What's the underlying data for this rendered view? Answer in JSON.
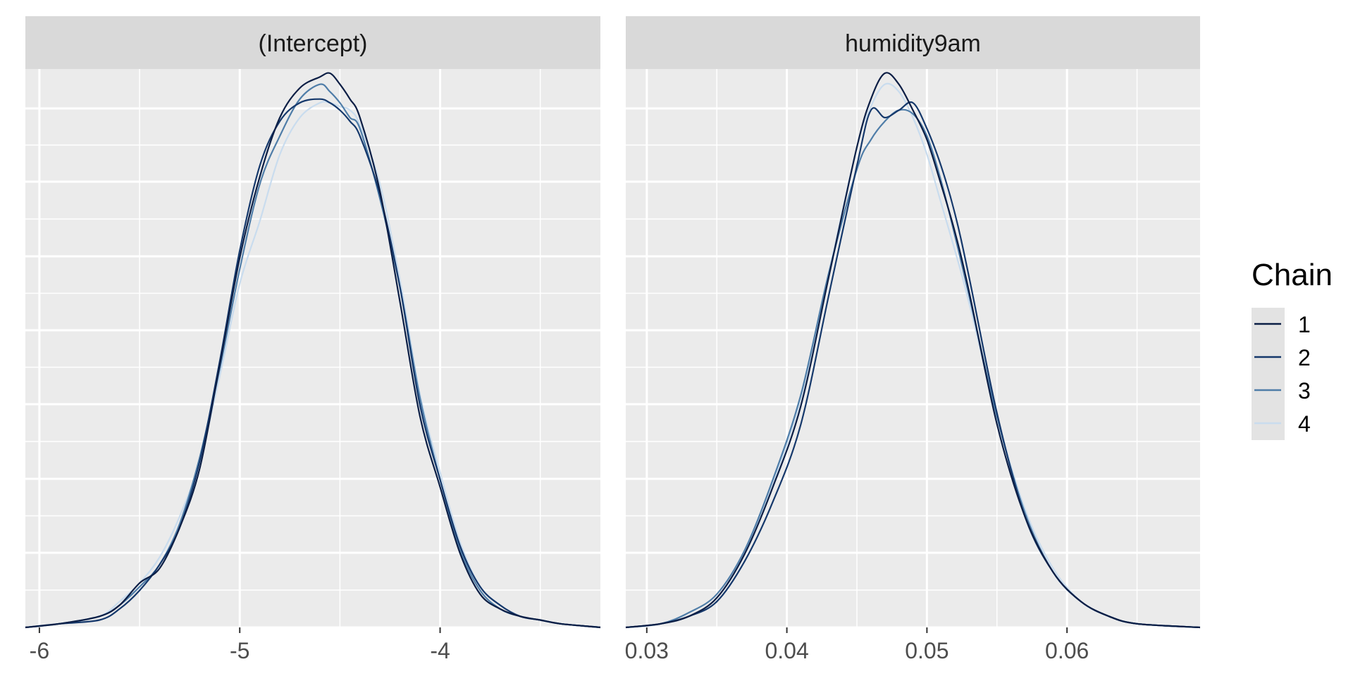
{
  "chart_data": {
    "type": "line",
    "grid": true,
    "legend": {
      "title": "Chain",
      "position": "right",
      "entries": [
        "1",
        "2",
        "3",
        "4"
      ]
    },
    "series_colors": {
      "1": "#0b1e45",
      "2": "#15386b",
      "3": "#4f7da8",
      "4": "#c9dcee"
    },
    "panels": [
      {
        "title": "(Intercept)",
        "xlim": [
          -6.07,
          -3.2
        ],
        "ylim": [
          0,
          1.5
        ],
        "x_ticks": [
          -6,
          -5,
          -4
        ],
        "x_tick_labels": [
          "-6",
          "-5",
          "-4"
        ],
        "series": [
          {
            "name": "1",
            "x": [
              -6.07,
              -5.9,
              -5.7,
              -5.6,
              -5.5,
              -5.4,
              -5.3,
              -5.2,
              -5.1,
              -5.0,
              -4.9,
              -4.8,
              -4.7,
              -4.6,
              -4.55,
              -4.5,
              -4.45,
              -4.4,
              -4.3,
              -4.2,
              -4.1,
              -4.0,
              -3.9,
              -3.8,
              -3.7,
              -3.6,
              -3.5,
              -3.4,
              -3.2
            ],
            "y": [
              0.0,
              0.01,
              0.03,
              0.06,
              0.12,
              0.16,
              0.27,
              0.43,
              0.71,
              1.0,
              1.22,
              1.38,
              1.46,
              1.49,
              1.5,
              1.47,
              1.43,
              1.38,
              1.18,
              0.88,
              0.57,
              0.38,
              0.2,
              0.09,
              0.05,
              0.03,
              0.02,
              0.01,
              0.0
            ]
          },
          {
            "name": "2",
            "x": [
              -6.07,
              -5.9,
              -5.7,
              -5.6,
              -5.5,
              -5.4,
              -5.3,
              -5.2,
              -5.1,
              -5.0,
              -4.9,
              -4.8,
              -4.7,
              -4.6,
              -4.55,
              -4.5,
              -4.45,
              -4.4,
              -4.3,
              -4.2,
              -4.1,
              -4.0,
              -3.9,
              -3.8,
              -3.7,
              -3.6,
              -3.5,
              -3.4,
              -3.2
            ],
            "y": [
              0.0,
              0.01,
              0.02,
              0.05,
              0.1,
              0.17,
              0.27,
              0.45,
              0.72,
              1.02,
              1.25,
              1.37,
              1.42,
              1.43,
              1.42,
              1.4,
              1.37,
              1.33,
              1.17,
              0.92,
              0.6,
              0.4,
              0.22,
              0.11,
              0.06,
              0.03,
              0.02,
              0.01,
              0.0
            ]
          },
          {
            "name": "3",
            "x": [
              -6.07,
              -5.9,
              -5.7,
              -5.6,
              -5.5,
              -5.4,
              -5.3,
              -5.2,
              -5.1,
              -5.0,
              -4.9,
              -4.8,
              -4.7,
              -4.6,
              -4.55,
              -4.5,
              -4.45,
              -4.4,
              -4.3,
              -4.2,
              -4.1,
              -4.0,
              -3.9,
              -3.8,
              -3.7,
              -3.6,
              -3.5,
              -3.4,
              -3.2
            ],
            "y": [
              0.0,
              0.01,
              0.03,
              0.06,
              0.11,
              0.17,
              0.28,
              0.46,
              0.7,
              0.97,
              1.2,
              1.33,
              1.43,
              1.47,
              1.45,
              1.42,
              1.38,
              1.35,
              1.16,
              0.92,
              0.62,
              0.4,
              0.21,
              0.1,
              0.05,
              0.03,
              0.02,
              0.01,
              0.0
            ]
          },
          {
            "name": "4",
            "x": [
              -6.07,
              -5.9,
              -5.7,
              -5.6,
              -5.5,
              -5.4,
              -5.3,
              -5.2,
              -5.1,
              -5.0,
              -4.9,
              -4.8,
              -4.7,
              -4.6,
              -4.55,
              -4.5,
              -4.45,
              -4.4,
              -4.3,
              -4.2,
              -4.1,
              -4.0,
              -3.9,
              -3.8,
              -3.7,
              -3.6,
              -3.5,
              -3.4,
              -3.2
            ],
            "y": [
              0.0,
              0.01,
              0.03,
              0.07,
              0.12,
              0.19,
              0.3,
              0.45,
              0.68,
              0.93,
              1.1,
              1.28,
              1.38,
              1.42,
              1.42,
              1.41,
              1.4,
              1.36,
              1.2,
              0.94,
              0.63,
              0.42,
              0.23,
              0.11,
              0.06,
              0.03,
              0.02,
              0.01,
              0.0
            ]
          }
        ]
      },
      {
        "title": "humidity9am",
        "xlim": [
          0.0285,
          0.0695
        ],
        "ylim": [
          0,
          1.5
        ],
        "x_ticks": [
          0.03,
          0.04,
          0.05,
          0.06
        ],
        "x_tick_labels": [
          "0.03",
          "0.04",
          "0.05",
          "0.06"
        ],
        "series": [
          {
            "name": "1",
            "x": [
              0.0285,
              0.031,
              0.033,
              0.035,
              0.037,
              0.039,
              0.041,
              0.043,
              0.045,
              0.046,
              0.047,
              0.048,
              0.049,
              0.05,
              0.051,
              0.052,
              0.053,
              0.055,
              0.057,
              0.059,
              0.061,
              0.063,
              0.065,
              0.0695
            ],
            "y": [
              0.0,
              0.01,
              0.03,
              0.08,
              0.2,
              0.38,
              0.6,
              0.95,
              1.3,
              1.43,
              1.5,
              1.47,
              1.4,
              1.32,
              1.2,
              1.07,
              0.91,
              0.55,
              0.3,
              0.15,
              0.07,
              0.03,
              0.01,
              0.0
            ]
          },
          {
            "name": "2",
            "x": [
              0.0285,
              0.031,
              0.033,
              0.035,
              0.037,
              0.039,
              0.041,
              0.043,
              0.045,
              0.046,
              0.047,
              0.048,
              0.049,
              0.05,
              0.051,
              0.052,
              0.053,
              0.055,
              0.057,
              0.059,
              0.061,
              0.063,
              0.065,
              0.0695
            ],
            "y": [
              0.0,
              0.01,
              0.03,
              0.07,
              0.18,
              0.34,
              0.55,
              0.9,
              1.25,
              1.4,
              1.38,
              1.4,
              1.42,
              1.35,
              1.25,
              1.12,
              0.95,
              0.58,
              0.3,
              0.15,
              0.07,
              0.03,
              0.01,
              0.0
            ]
          },
          {
            "name": "3",
            "x": [
              0.0285,
              0.031,
              0.033,
              0.035,
              0.037,
              0.039,
              0.041,
              0.043,
              0.045,
              0.046,
              0.047,
              0.048,
              0.049,
              0.05,
              0.051,
              0.052,
              0.053,
              0.055,
              0.057,
              0.059,
              0.061,
              0.063,
              0.065,
              0.0695
            ],
            "y": [
              0.0,
              0.01,
              0.04,
              0.09,
              0.21,
              0.4,
              0.63,
              0.96,
              1.24,
              1.32,
              1.37,
              1.4,
              1.39,
              1.33,
              1.21,
              1.06,
              0.9,
              0.57,
              0.31,
              0.15,
              0.07,
              0.03,
              0.01,
              0.0
            ]
          },
          {
            "name": "4",
            "x": [
              0.0285,
              0.031,
              0.033,
              0.035,
              0.037,
              0.039,
              0.041,
              0.043,
              0.045,
              0.046,
              0.047,
              0.048,
              0.049,
              0.05,
              0.051,
              0.052,
              0.053,
              0.055,
              0.057,
              0.059,
              0.061,
              0.063,
              0.065,
              0.0695
            ],
            "y": [
              0.0,
              0.01,
              0.03,
              0.08,
              0.2,
              0.39,
              0.62,
              0.96,
              1.3,
              1.41,
              1.47,
              1.45,
              1.38,
              1.28,
              1.15,
              1.02,
              0.88,
              0.57,
              0.32,
              0.16,
              0.07,
              0.03,
              0.01,
              0.0
            ]
          }
        ]
      }
    ]
  }
}
